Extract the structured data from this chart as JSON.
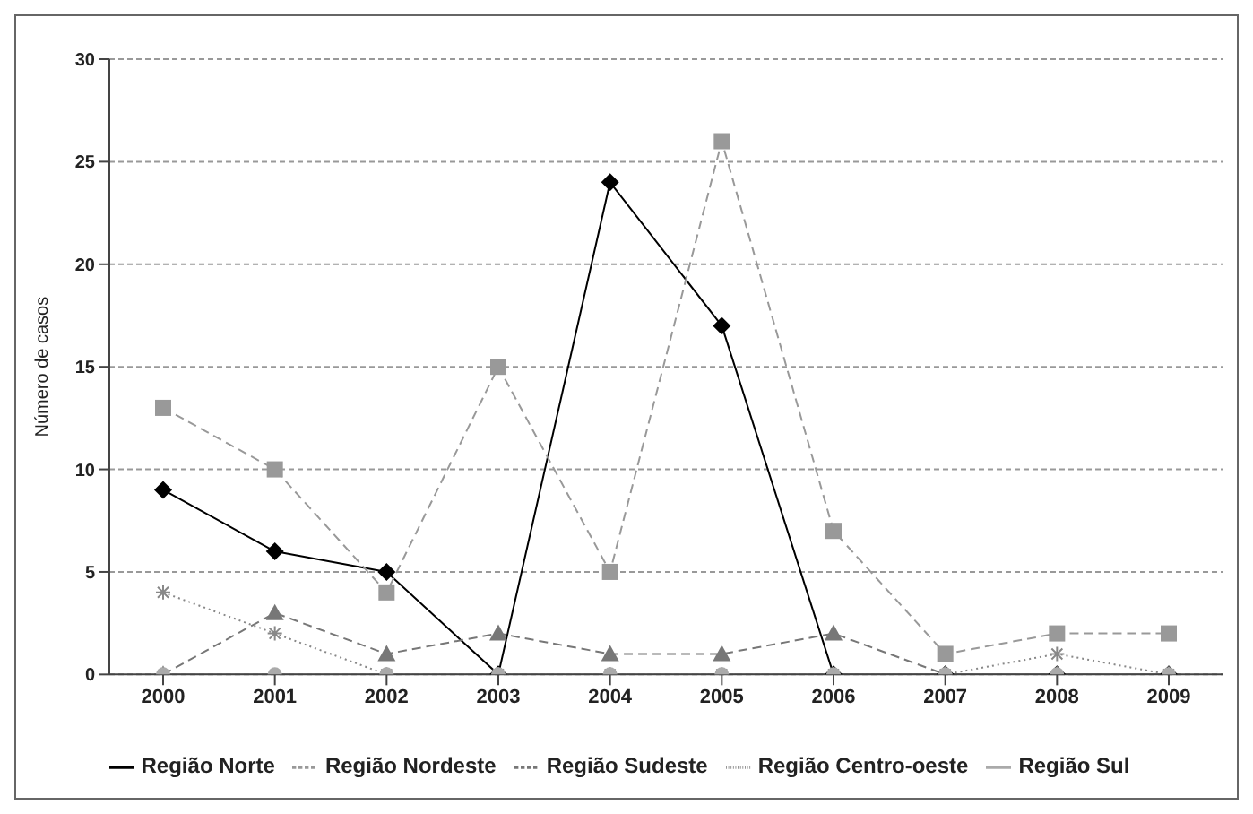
{
  "chart_data": {
    "type": "line",
    "ylabel": "Número de casos",
    "categories": [
      "2000",
      "2001",
      "2002",
      "2003",
      "2004",
      "2005",
      "2006",
      "2007",
      "2008",
      "2009"
    ],
    "series": [
      {
        "name": "Região Norte",
        "color": "#000000",
        "marker": "diamond",
        "line_style": "solid",
        "values": [
          9,
          6,
          5,
          0,
          24,
          17,
          0,
          0,
          0,
          0
        ]
      },
      {
        "name": "Região Nordeste",
        "color": "#999999",
        "marker": "square",
        "line_style": "dashed",
        "values": [
          13,
          10,
          4,
          15,
          5,
          26,
          7,
          1,
          2,
          2
        ]
      },
      {
        "name": "Região Sudeste",
        "color": "#777777",
        "marker": "triangle",
        "line_style": "dashed",
        "values": [
          0,
          3,
          1,
          2,
          1,
          1,
          2,
          0,
          0,
          0
        ]
      },
      {
        "name": "Região Centro-oeste",
        "color": "#888888",
        "marker": "cross",
        "line_style": "dotted",
        "values": [
          4,
          2,
          0,
          0,
          0,
          0,
          0,
          0,
          1,
          0
        ]
      },
      {
        "name": "Região Sul",
        "color": "#aaaaaa",
        "marker": "circle",
        "line_style": "solid",
        "values": [
          0,
          0,
          0,
          0,
          0,
          0,
          0,
          0,
          0,
          0
        ]
      }
    ],
    "ylim": [
      0,
      30
    ],
    "yticks": [
      0,
      5,
      10,
      15,
      20,
      25,
      30
    ],
    "grid": "y",
    "legend": "bottom"
  }
}
